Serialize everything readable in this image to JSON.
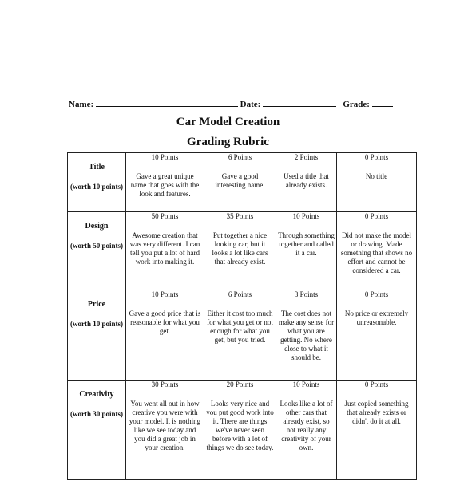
{
  "header": {
    "name_label": "Name:",
    "date_label": "Date:",
    "grade_label": "Grade:"
  },
  "title": "Car Model Creation",
  "subtitle": "Grading Rubric",
  "rows": [
    {
      "category": "Title",
      "worth": "(worth 10 points)",
      "cells": [
        {
          "points": "10 Points",
          "text": "Gave a great unique name that goes with the look and features."
        },
        {
          "points": "6 Points",
          "text": "Gave a good interesting name."
        },
        {
          "points": "2 Points",
          "text": "Used a title that already exists."
        },
        {
          "points": "0 Points",
          "text": "No title"
        }
      ]
    },
    {
      "category": "Design",
      "worth": "(worth 50 points)",
      "cells": [
        {
          "points": "50 Points",
          "text": "Awesome creation that was very different.  I can tell you put a lot of hard work into making it."
        },
        {
          "points": "35 Points",
          "text": "Put together a nice looking car, but it looks a lot like cars that already exist."
        },
        {
          "points": "10 Points",
          "text": "Through something together and called it a car."
        },
        {
          "points": "0 Points",
          "text": "Did not make the model or drawing.  Made something that shows no effort and cannot be considered a car."
        }
      ]
    },
    {
      "category": "Price",
      "worth": "(worth 10 points)",
      "cells": [
        {
          "points": "10 Points",
          "text": "Gave a good price that is reasonable for what you get."
        },
        {
          "points": "6 Points",
          "text": "Either it cost too much for what you get or not enough for what you get, but you tried."
        },
        {
          "points": "3 Points",
          "text": "The cost does not make any sense for what you are getting.  No where close to what it should be."
        },
        {
          "points": "0 Points",
          "text": "No price or extremely unreasonable."
        }
      ]
    },
    {
      "category": "Creativity",
      "worth": "(worth 30 points)",
      "cells": [
        {
          "points": "30 Points",
          "text": "You went all out in how creative you were with your model.  It is nothing like we see today and you did a great job in your creation."
        },
        {
          "points": "20 Points",
          "text": "Looks very nice and you put good work into it.  There are things we've never seen before with a lot of things we do see today."
        },
        {
          "points": "10 Points",
          "text": "Looks like a lot of other cars that already exist, so not really any creativity of your own."
        },
        {
          "points": "0 Points",
          "text": "Just copied something that already exists or didn't do it at all."
        }
      ]
    }
  ]
}
